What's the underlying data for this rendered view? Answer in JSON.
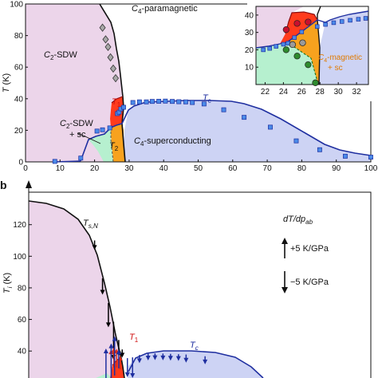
{
  "panel_labels": {
    "b": "b"
  },
  "chart_data": [
    {
      "type": "area",
      "panel": "a",
      "xlim": [
        0,
        100
      ],
      "ylim": [
        0,
        100
      ],
      "x_ticks": [
        0,
        10,
        20,
        30,
        40,
        50,
        60,
        70,
        80,
        90,
        100
      ],
      "y_ticks": [
        0,
        20,
        40,
        60,
        80,
        100
      ],
      "ylabel_main": "T",
      "ylabel_unit": " (K)",
      "grid": false,
      "colors": {
        "sdw": "#ecd5ea",
        "para": "#ffffff",
        "sc": "#cdd3f4",
        "mix": "#b6f0cf",
        "t1": "#ff3b1c",
        "mag": "#f7a21e",
        "tc_line": "#1f2fa0",
        "square_fill": "#4a8ae8",
        "diamond_fill": "#a8a8a8"
      },
      "labels": {
        "c4_para": {
          "sym": "C",
          "sub": "4",
          "rest": "-paramagnetic"
        },
        "c2_sdw": {
          "sym": "C",
          "sub": "2",
          "rest": "-SDW"
        },
        "c2_sdw_sc": {
          "sym": "C",
          "sub": "2",
          "rest": "-SDW",
          "line2": "+ sc"
        },
        "c4_sc": {
          "sym": "C",
          "sub": "4",
          "rest": "-superconducting"
        },
        "t1": {
          "sym": "T",
          "sub": "1"
        },
        "t2": {
          "sym": "T",
          "sub": "2"
        },
        "tc": {
          "sym": "T",
          "sub": "c"
        }
      },
      "series": [
        {
          "name": "T_s,N",
          "kind": "diamond",
          "x": [
            22.3,
            23.2,
            23.9,
            24.6,
            25.4,
            26.1
          ],
          "y": [
            85.0,
            77.6,
            72.8,
            66.2,
            59.1,
            53.0
          ]
        },
        {
          "name": "T_c",
          "kind": "square",
          "x": [
            8.5,
            16,
            20.7,
            22.3,
            24.4,
            26.6,
            27.1,
            27.6,
            28.4,
            31.1,
            33.0,
            35.0,
            36.7,
            38.6,
            40.5,
            42.5,
            44.4,
            46.4,
            48.3,
            51.7,
            57.4,
            63.3,
            70.9,
            78.4,
            85.2,
            92.6,
            100
          ],
          "y": [
            0.3,
            2.4,
            19.5,
            20.3,
            21.5,
            30.6,
            31.5,
            33.6,
            34.6,
            37.6,
            38.0,
            38.0,
            38.3,
            38.4,
            38.5,
            38.3,
            38.1,
            38.0,
            37.6,
            36.7,
            33.0,
            28.2,
            22.0,
            13.3,
            7.7,
            3.6,
            3.0
          ]
        }
      ],
      "inset": {
        "xlim": [
          21,
          33.3
        ],
        "ylim": [
          0,
          45
        ],
        "x_ticks": [
          22,
          24,
          26,
          28,
          30,
          32
        ],
        "y_ticks": [
          0,
          10,
          20,
          30,
          40
        ],
        "labels": {
          "c4_mag": {
            "sym": "C",
            "sub": "4",
            "rest": "-magnetic",
            "line2": "+ sc"
          }
        },
        "series": [
          {
            "name": "T_c",
            "kind": "square",
            "x": [
              21.8,
              22.5,
              23.2,
              24.0,
              24.5,
              25.2,
              26.0,
              27.7,
              28.6,
              29.5,
              30.4,
              31.3,
              32.2,
              33.0
            ],
            "y": [
              20.0,
              20.8,
              22.0,
              23.2,
              23.8,
              27.0,
              30.3,
              33.4,
              34.6,
              35.6,
              36.3,
              37.0,
              37.6,
              38.1
            ]
          },
          {
            "name": "T_1",
            "kind": "circle-red",
            "x": [
              24.3,
              25.5,
              26.7
            ],
            "y": [
              31.6,
              35.2,
              36.0
            ]
          },
          {
            "name": "T_2",
            "kind": "circle-green",
            "x": [
              24.3,
              25.5,
              26.7,
              27.5
            ],
            "y": [
              20.0,
              16.4,
              11.4,
              1.0
            ]
          },
          {
            "name": "T_s",
            "kind": "circle-grey",
            "x": [
              25.0,
              26.1
            ],
            "y": [
              23.0,
              24.0
            ]
          }
        ]
      }
    },
    {
      "type": "line",
      "panel": "b",
      "ylim": [
        20,
        145
      ],
      "y_ticks": [
        40,
        60,
        80,
        100,
        120
      ],
      "ylabel_main": "T",
      "ylabel_sub": "i",
      "ylabel_unit": " (K)",
      "grid": false,
      "labels": {
        "tsn": {
          "sym": "T",
          "sub": "s,N"
        },
        "t1": {
          "sym": "T",
          "sub": "1"
        },
        "tc": {
          "sym": "T",
          "sub": "c"
        },
        "legend_title": {
          "sym": "dT",
          "mid": "/dp",
          "sub": "ab"
        },
        "plus": "+5 K/GPa",
        "minus": "−5 K/GPa"
      },
      "series": [
        {
          "name": "dT_SN/dp",
          "color": "#000000",
          "x": [
            20.0,
            22.3,
            24.0,
            25.5,
            27.0,
            28.0
          ],
          "y": [
            110.0,
            86.0,
            70.5,
            58.5,
            47.0,
            41.0
          ],
          "dy": [
            -3.5,
            -6.0,
            -9.0,
            -14.0,
            -6.0,
            -3.0
          ]
        },
        {
          "name": "dT_1/dp",
          "color": "#d82a1a",
          "x": [
            24.8,
            25.6,
            26.4,
            27.4
          ],
          "y": [
            29.0,
            29.5,
            29.5,
            28.5
          ],
          "dy": [
            7.0,
            7.5,
            7.0,
            5.0
          ]
        },
        {
          "name": "dT_c/dp",
          "color": "#1f2fa0",
          "x": [
            21.9,
            23.3,
            24.8,
            25.8,
            27.0,
            28.2,
            29.5,
            31.0,
            33.0,
            35.5,
            37.5,
            39.8,
            42.0,
            44.3,
            46.5,
            52.0
          ],
          "y": [
            20.0,
            21.0,
            22.5,
            24.5,
            29.0,
            34.0,
            35.5,
            36.0,
            37.5,
            38.3,
            38.5,
            38.4,
            38.2,
            38.0,
            37.8,
            36.7
          ],
          "dy": [
            0,
            12.0,
            13.0,
            14.5,
            7.0,
            0,
            -7.0,
            -8.0,
            -3.0,
            -2.5,
            -2.5,
            -2.5,
            -2.5,
            -2.5,
            -3.0,
            -3.0
          ]
        }
      ]
    }
  ]
}
